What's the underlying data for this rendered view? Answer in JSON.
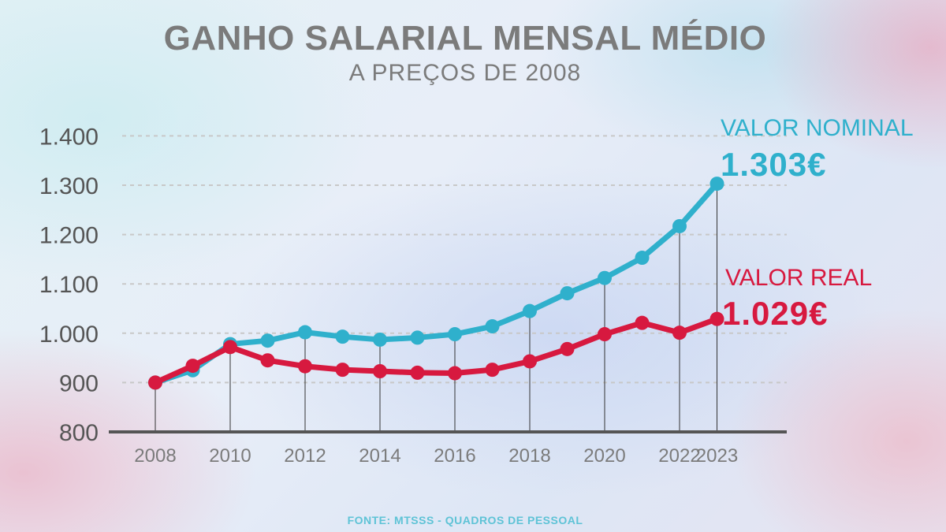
{
  "header": {
    "title": "GANHO SALARIAL MENSAL MÉDIO",
    "subtitle": "A PREÇOS DE 2008"
  },
  "source": "FONTE: MTSSS - QUADROS DE PESSOAL",
  "labels": {
    "nominal_name": "VALOR NOMINAL",
    "nominal_value": "1.303€",
    "real_name": "VALOR REAL",
    "real_value": "1.029€"
  },
  "colors": {
    "nominal": "#2fb0cc",
    "real": "#d7193f",
    "axis": "#555555",
    "grid": "#c8c8c8",
    "tick_text_y": "#555555",
    "tick_text_x": "#7b7b7b"
  },
  "chart_data": {
    "type": "line",
    "title": "GANHO SALARIAL MENSAL MÉDIO",
    "subtitle": "A PREÇOS DE 2008",
    "x": [
      2008,
      2009,
      2010,
      2011,
      2012,
      2013,
      2014,
      2015,
      2016,
      2017,
      2018,
      2019,
      2020,
      2021,
      2022,
      2023
    ],
    "x_tick_labels": [
      "2008",
      "2010",
      "2012",
      "2014",
      "2016",
      "2018",
      "2020",
      "2022",
      "2023"
    ],
    "x_ticks": [
      2008,
      2010,
      2012,
      2014,
      2016,
      2018,
      2020,
      2022,
      2023
    ],
    "y_ticks": [
      800,
      900,
      1000,
      1100,
      1200,
      1300,
      1400
    ],
    "y_tick_labels": [
      "800",
      "900",
      "1.000",
      "1.100",
      "1.200",
      "1.300",
      "1.400"
    ],
    "ylim": [
      800,
      1400
    ],
    "grid": "horizontal dashed",
    "series": [
      {
        "name": "VALOR NOMINAL",
        "values": [
          900,
          925,
          978,
          985,
          1002,
          993,
          987,
          991,
          998,
          1014,
          1045,
          1081,
          1112,
          1153,
          1217,
          1303
        ]
      },
      {
        "name": "VALOR REAL",
        "values": [
          900,
          934,
          972,
          945,
          933,
          926,
          923,
          920,
          919,
          926,
          943,
          968,
          998,
          1021,
          1001,
          1029
        ]
      }
    ]
  }
}
